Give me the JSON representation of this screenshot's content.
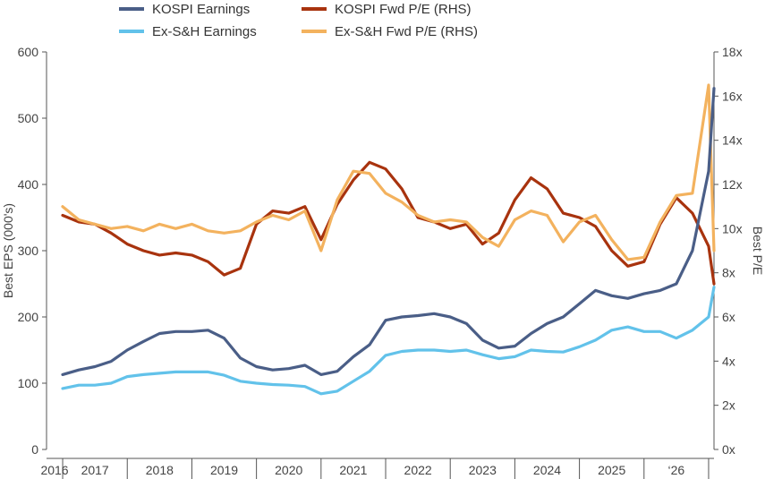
{
  "chart_data": {
    "type": "line",
    "title": "",
    "x": [
      "2016-01",
      "2016-04",
      "2016-07",
      "2016-10",
      "2017-01",
      "2017-04",
      "2017-07",
      "2017-10",
      "2018-01",
      "2018-04",
      "2018-07",
      "2018-10",
      "2019-01",
      "2019-04",
      "2019-07",
      "2019-10",
      "2020-01",
      "2020-04",
      "2020-07",
      "2020-10",
      "2021-01",
      "2021-04",
      "2021-07",
      "2021-10",
      "2022-01",
      "2022-04",
      "2022-07",
      "2022-10",
      "2023-01",
      "2023-04",
      "2023-07",
      "2023-10",
      "2024-01",
      "2024-04",
      "2024-07",
      "2024-10",
      "2025-01",
      "2025-04",
      "2025-07",
      "2025-10",
      "2026-01",
      "2026-02"
    ],
    "x_labels": [
      "2016",
      "2017",
      "2018",
      "2019",
      "2020",
      "2021",
      "2022",
      "2023",
      "2024",
      "2025",
      "‘26"
    ],
    "x_range": [
      "2015-10",
      "2026-02"
    ],
    "ylabel_left": "Best EPS (000's)",
    "ylabel_right": "Best P/E",
    "ylim_left": [
      0,
      600
    ],
    "yticks_left": [
      "0",
      "100",
      "200",
      "300",
      "400",
      "500",
      "600"
    ],
    "ylim_right": [
      0,
      18
    ],
    "yticks_right": [
      "0x",
      "2x",
      "4x",
      "6x",
      "8x",
      "10x",
      "12x",
      "14x",
      "16x",
      "18x"
    ],
    "grid": false,
    "legend_position": "top",
    "series": [
      {
        "name": "KOSPI Earnings",
        "axis": "left",
        "color": "#4A5E87",
        "values": [
          113,
          120,
          125,
          133,
          150,
          163,
          175,
          178,
          178,
          180,
          168,
          138,
          125,
          120,
          122,
          127,
          113,
          118,
          140,
          158,
          195,
          200,
          202,
          205,
          200,
          190,
          165,
          153,
          156,
          175,
          190,
          200,
          220,
          240,
          232,
          228,
          235,
          240,
          250,
          300,
          420,
          545
        ]
      },
      {
        "name": "Ex-S&H Earnings",
        "axis": "left",
        "color": "#62C2EA",
        "values": [
          92,
          97,
          97,
          100,
          110,
          113,
          115,
          117,
          117,
          117,
          112,
          103,
          100,
          98,
          97,
          95,
          84,
          88,
          103,
          118,
          142,
          148,
          150,
          150,
          148,
          150,
          143,
          137,
          140,
          150,
          148,
          147,
          155,
          165,
          180,
          185,
          178,
          178,
          168,
          180,
          200,
          245
        ]
      },
      {
        "name": "KOSPI Fwd P/E (RHS)",
        "axis": "right",
        "color": "#A8330E",
        "values": [
          10.6,
          10.3,
          10.2,
          9.8,
          9.3,
          9.0,
          8.8,
          8.9,
          8.8,
          8.5,
          7.9,
          8.2,
          10.2,
          10.8,
          10.7,
          11.0,
          9.5,
          11.1,
          12.2,
          13.0,
          12.7,
          11.8,
          10.5,
          10.3,
          10.0,
          10.2,
          9.3,
          9.8,
          11.3,
          12.3,
          11.8,
          10.7,
          10.5,
          10.1,
          9.0,
          8.3,
          8.5,
          10.2,
          11.4,
          10.7,
          9.2,
          7.5
        ]
      },
      {
        "name": "Ex-S&H Fwd P/E (RHS)",
        "axis": "right",
        "color": "#F3B25E",
        "values": [
          11.0,
          10.4,
          10.2,
          10.0,
          10.1,
          9.9,
          10.2,
          10.0,
          10.2,
          9.9,
          9.8,
          9.9,
          10.3,
          10.6,
          10.4,
          10.8,
          9.0,
          11.3,
          12.6,
          12.5,
          11.6,
          11.2,
          10.6,
          10.3,
          10.4,
          10.3,
          9.6,
          9.2,
          10.4,
          10.8,
          10.6,
          9.4,
          10.3,
          10.6,
          9.5,
          8.6,
          8.7,
          10.3,
          11.5,
          11.6,
          16.5,
          9.0
        ]
      }
    ]
  }
}
